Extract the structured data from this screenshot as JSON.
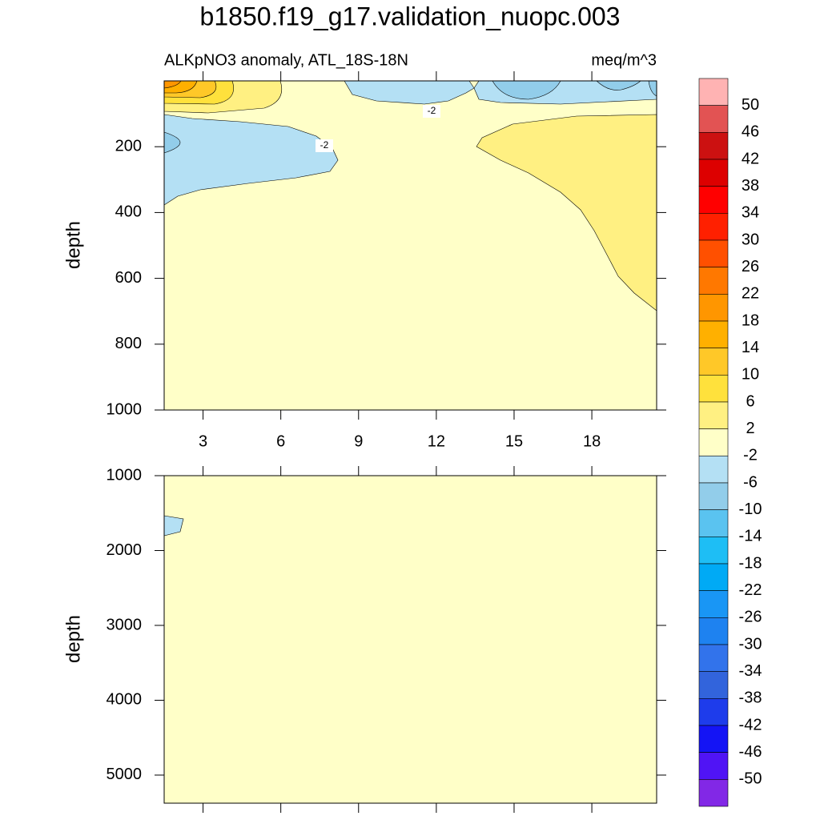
{
  "title": "b1850.f19_g17.validation_nuopc.003",
  "colorbar": {
    "levels": [
      50,
      46,
      42,
      38,
      34,
      30,
      26,
      22,
      18,
      14,
      10,
      6,
      2,
      -2,
      -6,
      -10,
      -14,
      -18,
      -22,
      -26,
      -30,
      -34,
      -38,
      -42,
      -46,
      -50
    ],
    "colors": [
      "#ffb3b3",
      "#e25353",
      "#cc1111",
      "#dd0000",
      "#ff0000",
      "#ff2000",
      "#ff5000",
      "#ff7800",
      "#ff9600",
      "#ffb000",
      "#ffc828",
      "#ffe13c",
      "#fff082",
      "#ffffc8",
      "#b4e0f4",
      "#92cdea",
      "#5ac3f0",
      "#1ebef5",
      "#00aaf5",
      "#1996f5",
      "#1e82f0",
      "#3273eb",
      "#3264dc",
      "#1e3ceb",
      "#1414f5",
      "#5014f5",
      "#8228e6"
    ]
  },
  "chart_data": [
    {
      "type": "contour",
      "subtitle_left": "ALKpNO3 anomaly, ATL_18S-18N",
      "subtitle_right": "meq/m^3",
      "ylabel": "depth",
      "xlim": [
        1.5,
        20.5
      ],
      "ylim": [
        0,
        1000
      ],
      "xticks": [
        3,
        6,
        9,
        12,
        15,
        18
      ],
      "yticks": [
        200,
        400,
        600,
        800,
        1000
      ],
      "show_xtick_labels": true,
      "y_inverted": true
    },
    {
      "type": "contour",
      "ylabel": "depth",
      "xlim": [
        1.5,
        20.5
      ],
      "ylim": [
        1000,
        5375
      ],
      "xticks": [
        3,
        6,
        9,
        12,
        15,
        18
      ],
      "yticks": [
        1000,
        2000,
        3000,
        4000,
        5000
      ],
      "show_xtick_labels": false,
      "y_inverted": true
    }
  ]
}
